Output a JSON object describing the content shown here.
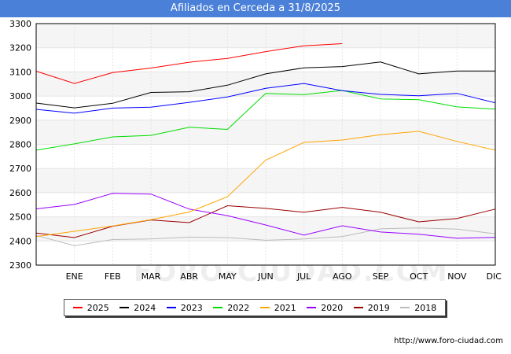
{
  "title": "Afiliados en Cerceda a 31/8/2025",
  "watermark": "FORO-CIUDAD.COM",
  "source": "http://www.foro-ciudad.com",
  "chart_data": {
    "type": "line",
    "title": "Afiliados en Cerceda a 31/8/2025",
    "xlabel": "",
    "ylabel": "",
    "categories": [
      "",
      "ENE",
      "FEB",
      "MAR",
      "ABR",
      "MAY",
      "JUN",
      "JUL",
      "AGO",
      "SEP",
      "OCT",
      "NOV",
      "DIC"
    ],
    "ylim": [
      2300,
      3300
    ],
    "yticks": [
      2300,
      2400,
      2500,
      2600,
      2700,
      2800,
      2900,
      3000,
      3100,
      3200,
      3300
    ],
    "grid": "horizontal bands",
    "legend": "bottom",
    "series": [
      {
        "name": "2025",
        "color": "#ff0000",
        "values": [
          3103,
          3052,
          3097,
          3116,
          3140,
          3156,
          3184,
          3208,
          3217,
          null,
          null,
          null,
          null
        ]
      },
      {
        "name": "2024",
        "color": "#000000",
        "values": [
          2971,
          2951,
          2970,
          3015,
          3018,
          3045,
          3092,
          3117,
          3122,
          3141,
          3092,
          3104,
          3104
        ]
      },
      {
        "name": "2023",
        "color": "#0000ff",
        "values": [
          2945,
          2929,
          2950,
          2954,
          2974,
          2996,
          3032,
          3052,
          3022,
          3007,
          3001,
          3011,
          2972
        ]
      },
      {
        "name": "2022",
        "color": "#00dd00",
        "values": [
          2776,
          2802,
          2831,
          2837,
          2871,
          2862,
          3011,
          3006,
          3023,
          2988,
          2985,
          2955,
          2946
        ]
      },
      {
        "name": "2021",
        "color": "#ffa500",
        "values": [
          2418,
          2440,
          2462,
          2488,
          2520,
          2583,
          2735,
          2808,
          2818,
          2840,
          2854,
          2812,
          2776
        ]
      },
      {
        "name": "2020",
        "color": "#9900ff",
        "values": [
          2533,
          2551,
          2597,
          2594,
          2532,
          2505,
          2466,
          2424,
          2463,
          2437,
          2428,
          2411,
          2415
        ]
      },
      {
        "name": "2019",
        "color": "#990000",
        "values": [
          2433,
          2414,
          2461,
          2487,
          2476,
          2546,
          2535,
          2519,
          2539,
          2519,
          2479,
          2493,
          2532
        ]
      },
      {
        "name": "2018",
        "color": "#bbbbbb",
        "values": [
          2423,
          2380,
          2406,
          2408,
          2416,
          2414,
          2403,
          2408,
          2418,
          2450,
          2454,
          2449,
          2430
        ]
      }
    ]
  }
}
